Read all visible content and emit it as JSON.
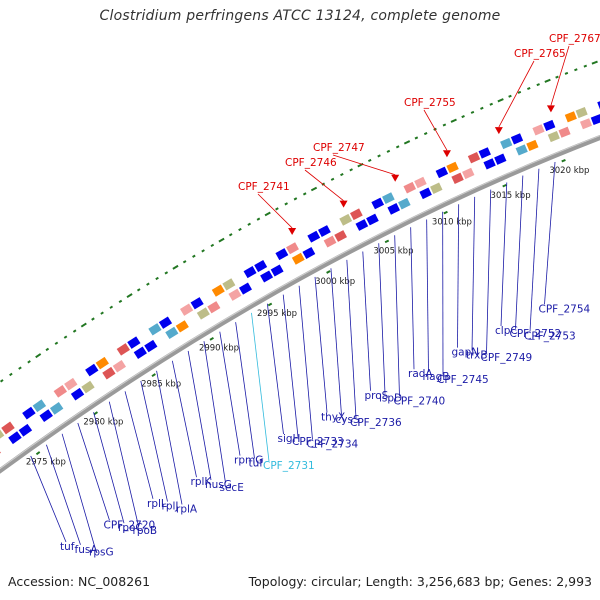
{
  "title": "Clostridium perfringens ATCC 13124, complete genome",
  "footer": {
    "accession": "Accession: NC_008261",
    "summary": "Topology: circular; Length: 3,256,683 bp; Genes: 2,993"
  },
  "colors": {
    "backbone": "#999999",
    "feature_blue": "#0000ee",
    "label_blue": "#1a1aa6",
    "label_red": "#dd0000",
    "label_cyan": "#33bbdd",
    "tick_green": "#227722"
  },
  "kbp_ticks": [
    "2975 kbp",
    "2980 kbp",
    "2985 kbp",
    "2990 kbp",
    "2995 kbp",
    "3000 kbp",
    "3005 kbp",
    "3010 kbp",
    "3015 kbp",
    "3020 kbp"
  ],
  "gene_labels": [
    {
      "text": "tuf",
      "color": "blue"
    },
    {
      "text": "fusA",
      "color": "blue"
    },
    {
      "text": "rpsG",
      "color": "blue"
    },
    {
      "text": "CPF_2720",
      "color": "blue"
    },
    {
      "text": "rpoC",
      "color": "blue"
    },
    {
      "text": "rpoB",
      "color": "blue"
    },
    {
      "text": "rplL",
      "color": "blue"
    },
    {
      "text": "rplJ",
      "color": "blue"
    },
    {
      "text": "rplA",
      "color": "blue"
    },
    {
      "text": "rplK",
      "color": "blue"
    },
    {
      "text": "nusG",
      "color": "blue"
    },
    {
      "text": "secE",
      "color": "blue"
    },
    {
      "text": "rpmG",
      "color": "blue"
    },
    {
      "text": "tuf",
      "color": "blue"
    },
    {
      "text": "CPF_2731",
      "color": "cyan"
    },
    {
      "text": "sigH",
      "color": "blue"
    },
    {
      "text": "CPF_2733",
      "color": "blue"
    },
    {
      "text": "CPF_2734",
      "color": "blue"
    },
    {
      "text": "thyX",
      "color": "blue"
    },
    {
      "text": "cysS",
      "color": "blue"
    },
    {
      "text": "CPF_2736",
      "color": "blue"
    },
    {
      "text": "proS",
      "color": "blue"
    },
    {
      "text": "ispD",
      "color": "blue"
    },
    {
      "text": "CPF_2740",
      "color": "blue"
    },
    {
      "text": "radA",
      "color": "blue"
    },
    {
      "text": "nagB",
      "color": "blue"
    },
    {
      "text": "CPF_2745",
      "color": "blue"
    },
    {
      "text": "gapN",
      "color": "blue"
    },
    {
      "text": "trxB",
      "color": "blue"
    },
    {
      "text": "CPF_2749",
      "color": "blue"
    },
    {
      "text": "clpC",
      "color": "blue"
    },
    {
      "text": "CPF_2752",
      "color": "blue"
    },
    {
      "text": "CPF_2753",
      "color": "blue"
    },
    {
      "text": "CPF_2754",
      "color": "blue"
    },
    {
      "text": "CPF_2741",
      "color": "red"
    },
    {
      "text": "CPF_2746",
      "color": "red"
    },
    {
      "text": "CPF_2747",
      "color": "red"
    },
    {
      "text": "CPF_2755",
      "color": "red"
    },
    {
      "text": "CPF_2765",
      "color": "red"
    },
    {
      "text": "CPF_2767",
      "color": "red"
    }
  ]
}
